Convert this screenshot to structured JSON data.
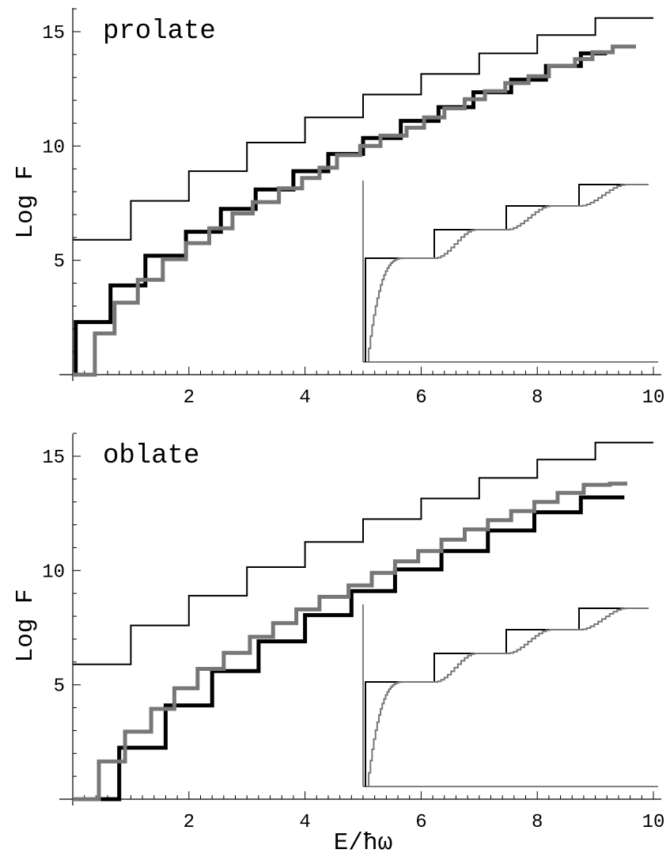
{
  "chart_data": [
    {
      "type": "line",
      "label": "prolate",
      "ylabel": "Log F",
      "xlabel": "",
      "xlim": [
        0,
        10
      ],
      "ylim": [
        0,
        16.3
      ],
      "xticks": [
        "2",
        "4",
        "6",
        "8",
        "10"
      ],
      "yticks": [
        "5",
        "10",
        "15"
      ],
      "series": [
        {
          "style": "thin-black",
          "values": [
            [
              0,
              5.9
            ],
            [
              1,
              5.9
            ],
            [
              1,
              7.6
            ],
            [
              2,
              7.6
            ],
            [
              2,
              8.9
            ],
            [
              3,
              8.9
            ],
            [
              3,
              10.15
            ],
            [
              4,
              10.15
            ],
            [
              4,
              11.25
            ],
            [
              5,
              11.25
            ],
            [
              5,
              12.25
            ],
            [
              6,
              12.25
            ],
            [
              6,
              13.15
            ],
            [
              7,
              13.15
            ],
            [
              7,
              14.05
            ],
            [
              8,
              14.05
            ],
            [
              8,
              14.85
            ],
            [
              9,
              14.85
            ],
            [
              9,
              15.6
            ],
            [
              10,
              15.6
            ]
          ]
        },
        {
          "style": "thick-black",
          "values": [
            [
              0,
              0
            ],
            [
              0.05,
              0
            ],
            [
              0.05,
              2.3
            ],
            [
              0.28,
              2.3
            ],
            [
              0.28,
              2.3
            ],
            [
              0.28,
              2.3
            ],
            [
              0.28,
              2.35
            ],
            [
              0.28,
              2.35
            ],
            [
              0.28,
              2.3
            ],
            [
              0.28,
              2.3
            ],
            [
              0.28,
              2.3
            ],
            [
              0.28,
              2.3
            ],
            [
              0.65,
              2.3
            ],
            [
              0.65,
              3.9
            ],
            [
              1.25,
              3.9
            ],
            [
              1.25,
              5.2
            ],
            [
              1.95,
              5.2
            ],
            [
              1.95,
              6.25
            ],
            [
              2.55,
              6.25
            ],
            [
              2.55,
              7.25
            ],
            [
              3.15,
              7.25
            ],
            [
              3.15,
              8.1
            ],
            [
              3.8,
              8.1
            ],
            [
              3.8,
              8.9
            ],
            [
              4.4,
              8.9
            ],
            [
              4.4,
              9.65
            ],
            [
              5.0,
              9.65
            ],
            [
              5.0,
              10.35
            ],
            [
              5.65,
              10.35
            ],
            [
              5.65,
              11.1
            ],
            [
              6.3,
              11.1
            ],
            [
              6.3,
              11.7
            ],
            [
              6.9,
              11.7
            ],
            [
              6.9,
              12.35
            ],
            [
              7.55,
              12.35
            ],
            [
              7.55,
              12.9
            ],
            [
              8.15,
              12.9
            ],
            [
              8.15,
              13.5
            ],
            [
              8.75,
              13.5
            ],
            [
              8.75,
              14.05
            ],
            [
              9.2,
              14.05
            ]
          ]
        },
        {
          "style": "thick-gray",
          "values": [
            [
              0,
              0
            ],
            [
              0.38,
              0
            ],
            [
              0.38,
              1.8
            ],
            [
              0.72,
              1.8
            ],
            [
              0.72,
              3.15
            ],
            [
              1.12,
              3.15
            ],
            [
              1.12,
              4.15
            ],
            [
              1.55,
              4.15
            ],
            [
              1.55,
              5.05
            ],
            [
              1.95,
              5.05
            ],
            [
              1.95,
              5.75
            ],
            [
              2.35,
              5.75
            ],
            [
              2.35,
              6.4
            ],
            [
              2.75,
              6.4
            ],
            [
              2.75,
              7.05
            ],
            [
              3.1,
              7.05
            ],
            [
              3.1,
              7.55
            ],
            [
              3.55,
              7.55
            ],
            [
              3.55,
              8.15
            ],
            [
              3.95,
              8.15
            ],
            [
              3.95,
              8.6
            ],
            [
              4.25,
              8.6
            ],
            [
              4.25,
              9.05
            ],
            [
              4.55,
              9.05
            ],
            [
              4.55,
              9.6
            ],
            [
              4.95,
              9.6
            ],
            [
              4.95,
              10.0
            ],
            [
              5.3,
              10.0
            ],
            [
              5.3,
              10.45
            ],
            [
              5.75,
              10.45
            ],
            [
              5.75,
              10.8
            ],
            [
              6.05,
              10.8
            ],
            [
              6.05,
              11.25
            ],
            [
              6.4,
              11.25
            ],
            [
              6.4,
              11.65
            ],
            [
              6.75,
              11.65
            ],
            [
              6.75,
              12.05
            ],
            [
              7.1,
              12.05
            ],
            [
              7.1,
              12.4
            ],
            [
              7.45,
              12.4
            ],
            [
              7.45,
              12.75
            ],
            [
              7.85,
              12.75
            ],
            [
              7.85,
              13.05
            ],
            [
              8.2,
              13.05
            ],
            [
              8.2,
              13.5
            ],
            [
              8.65,
              13.5
            ],
            [
              8.65,
              13.8
            ],
            [
              8.95,
              13.8
            ],
            [
              8.95,
              14.1
            ],
            [
              9.3,
              14.1
            ],
            [
              9.3,
              14.35
            ],
            [
              9.7,
              14.35
            ]
          ]
        }
      ],
      "inset": true
    },
    {
      "type": "line",
      "label": "oblate",
      "ylabel": "Log F",
      "xlabel": "E/ħω",
      "xlim": [
        0,
        10
      ],
      "ylim": [
        0,
        16.3
      ],
      "xticks": [
        "2",
        "4",
        "6",
        "8",
        "10"
      ],
      "yticks": [
        "5",
        "10",
        "15"
      ],
      "series": [
        {
          "style": "thin-black",
          "values": [
            [
              0,
              5.9
            ],
            [
              1,
              5.9
            ],
            [
              1,
              7.6
            ],
            [
              2,
              7.6
            ],
            [
              2,
              8.9
            ],
            [
              3,
              8.9
            ],
            [
              3,
              10.15
            ],
            [
              4,
              10.15
            ],
            [
              4,
              11.25
            ],
            [
              5,
              11.25
            ],
            [
              5,
              12.25
            ],
            [
              6,
              12.25
            ],
            [
              6,
              13.15
            ],
            [
              7,
              13.15
            ],
            [
              7,
              14.05
            ],
            [
              8,
              14.05
            ],
            [
              8,
              14.85
            ],
            [
              9,
              14.85
            ],
            [
              9,
              15.6
            ],
            [
              10,
              15.6
            ]
          ]
        },
        {
          "style": "thick-black",
          "values": [
            [
              0,
              0
            ],
            [
              0.8,
              0
            ],
            [
              0.8,
              2.25
            ],
            [
              1.6,
              2.25
            ],
            [
              1.6,
              4.1
            ],
            [
              2.4,
              4.1
            ],
            [
              2.4,
              5.6
            ],
            [
              3.2,
              5.6
            ],
            [
              3.2,
              6.9
            ],
            [
              4.0,
              6.9
            ],
            [
              4.0,
              8.05
            ],
            [
              4.8,
              8.05
            ],
            [
              4.8,
              9.1
            ],
            [
              5.55,
              9.1
            ],
            [
              5.55,
              10.05
            ],
            [
              6.35,
              10.05
            ],
            [
              6.35,
              10.85
            ],
            [
              7.15,
              10.85
            ],
            [
              7.15,
              11.75
            ],
            [
              7.95,
              11.75
            ],
            [
              7.95,
              12.55
            ],
            [
              8.75,
              12.55
            ],
            [
              8.75,
              13.2
            ],
            [
              9.5,
              13.2
            ]
          ]
        },
        {
          "style": "thick-gray",
          "values": [
            [
              0,
              0
            ],
            [
              0.45,
              0
            ],
            [
              0.45,
              1.65
            ],
            [
              0.9,
              1.65
            ],
            [
              0.9,
              2.95
            ],
            [
              1.35,
              2.95
            ],
            [
              1.35,
              3.95
            ],
            [
              1.75,
              3.95
            ],
            [
              1.75,
              4.85
            ],
            [
              2.15,
              4.85
            ],
            [
              2.15,
              5.7
            ],
            [
              2.6,
              5.7
            ],
            [
              2.6,
              6.4
            ],
            [
              3.05,
              6.4
            ],
            [
              3.05,
              7.1
            ],
            [
              3.45,
              7.1
            ],
            [
              3.45,
              7.7
            ],
            [
              3.85,
              7.7
            ],
            [
              3.85,
              8.3
            ],
            [
              4.25,
              8.3
            ],
            [
              4.25,
              8.85
            ],
            [
              4.75,
              8.85
            ],
            [
              4.75,
              9.35
            ],
            [
              5.15,
              9.35
            ],
            [
              5.15,
              9.9
            ],
            [
              5.55,
              9.9
            ],
            [
              5.55,
              10.4
            ],
            [
              5.95,
              10.4
            ],
            [
              5.95,
              10.85
            ],
            [
              6.35,
              10.85
            ],
            [
              6.35,
              11.35
            ],
            [
              6.75,
              11.35
            ],
            [
              6.75,
              11.8
            ],
            [
              7.15,
              11.8
            ],
            [
              7.15,
              12.2
            ],
            [
              7.55,
              12.2
            ],
            [
              7.55,
              12.6
            ],
            [
              7.95,
              12.6
            ],
            [
              7.95,
              13.0
            ],
            [
              8.35,
              13.0
            ],
            [
              8.35,
              13.4
            ],
            [
              8.8,
              13.4
            ],
            [
              8.8,
              13.75
            ],
            [
              9.25,
              13.75
            ],
            [
              9.25,
              13.8
            ],
            [
              9.55,
              13.8
            ]
          ]
        }
      ],
      "inset": true
    }
  ]
}
